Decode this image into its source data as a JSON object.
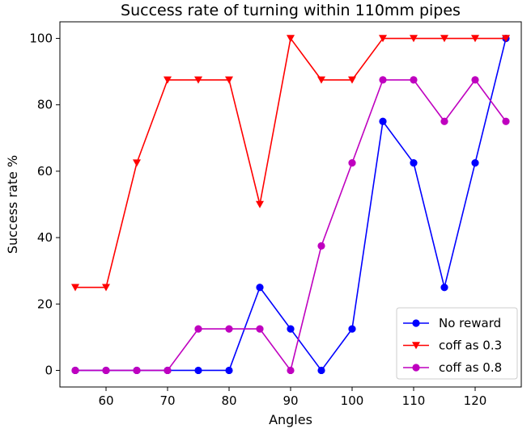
{
  "chart_data": {
    "type": "line",
    "title": "Success rate of turning within 110mm pipes",
    "xlabel": "Angles",
    "ylabel": "Success rate %",
    "x": [
      55,
      60,
      65,
      70,
      75,
      80,
      85,
      90,
      95,
      100,
      105,
      110,
      115,
      120,
      125
    ],
    "xlim": [
      52.5,
      127.5
    ],
    "ylim": [
      -5,
      105
    ],
    "xticks": [
      60,
      70,
      80,
      90,
      100,
      110,
      120
    ],
    "yticks": [
      0,
      20,
      40,
      60,
      80,
      100
    ],
    "grid": false,
    "legend_position": "lower-right",
    "series": [
      {
        "name": "No reward",
        "color": "#0000ff",
        "marker": "circle",
        "values": [
          0,
          0,
          0,
          0,
          0,
          0,
          25,
          12.5,
          0,
          12.5,
          75,
          62.5,
          25,
          62.5,
          100
        ]
      },
      {
        "name": "coff as 0.3",
        "color": "#ff0000",
        "marker": "triangle-down",
        "values": [
          25,
          25,
          62.5,
          87.5,
          87.5,
          87.5,
          50,
          100,
          87.5,
          87.5,
          100,
          100,
          100,
          100,
          100
        ]
      },
      {
        "name": "coff as 0.8",
        "color": "#bf00bf",
        "marker": "circle",
        "values": [
          0,
          0,
          0,
          0,
          12.5,
          12.5,
          12.5,
          0,
          37.5,
          62.5,
          87.5,
          87.5,
          75,
          87.5,
          75
        ]
      }
    ]
  }
}
